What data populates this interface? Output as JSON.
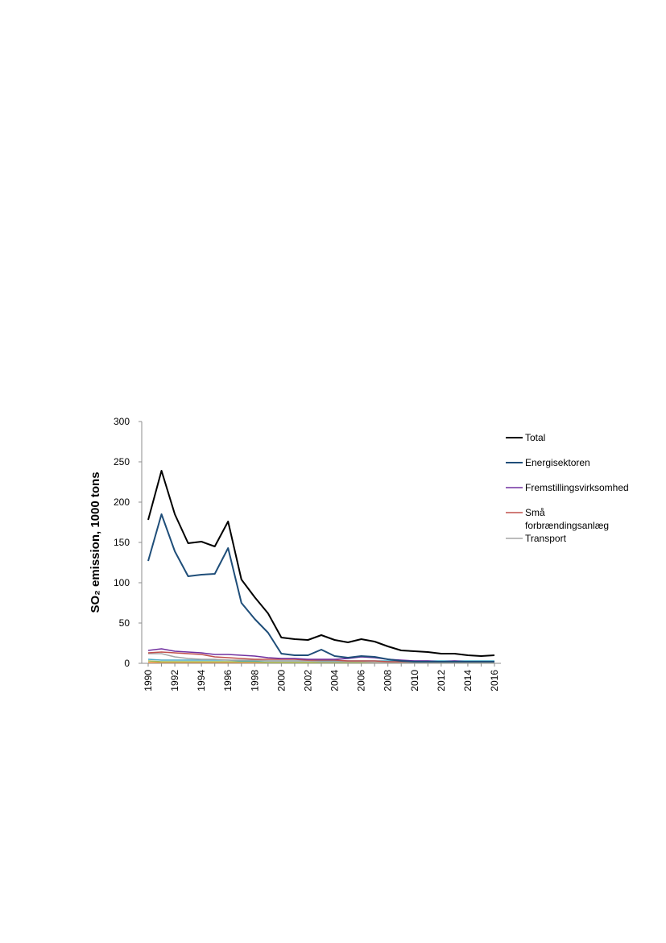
{
  "chart_data": {
    "type": "line",
    "ylabel": "SO₂ emission, 1000 tons",
    "ylim": [
      0,
      300
    ],
    "yticks": [
      0,
      50,
      100,
      150,
      200,
      250,
      300
    ],
    "x": [
      1990,
      1991,
      1992,
      1993,
      1994,
      1995,
      1996,
      1997,
      1998,
      1999,
      2000,
      2001,
      2002,
      2003,
      2004,
      2005,
      2006,
      2007,
      2008,
      2009,
      2010,
      2011,
      2012,
      2013,
      2014,
      2015,
      2016
    ],
    "xticks": [
      "1990",
      "1992",
      "1994",
      "1996",
      "1998",
      "2000",
      "2002",
      "2004",
      "2006",
      "2008",
      "2010",
      "2012",
      "2014",
      "2016"
    ],
    "legend_position": "right",
    "grid": false,
    "series": [
      {
        "name": "Total",
        "color": "#000000",
        "values": [
          178,
          239,
          185,
          149,
          151,
          145,
          176,
          104,
          82,
          62,
          32,
          30,
          29,
          35,
          29,
          26,
          30,
          27,
          21,
          16,
          15,
          14,
          12,
          12,
          10,
          9,
          10
        ]
      },
      {
        "name": "Energisektoren",
        "color": "#1f4e79",
        "values": [
          127,
          185,
          139,
          108,
          110,
          111,
          143,
          75,
          55,
          38,
          12,
          10,
          10,
          17,
          9,
          7,
          9,
          8,
          5,
          3,
          2,
          2,
          2,
          2,
          2,
          2,
          2
        ]
      },
      {
        "name": "Fremstillingsvirksomhed",
        "color": "#7030a0",
        "values": [
          16,
          18,
          15,
          14,
          13,
          11,
          11,
          10,
          9,
          7,
          6,
          6,
          5,
          5,
          5,
          6,
          8,
          7,
          5,
          4,
          3,
          3,
          2,
          3,
          2,
          2,
          2
        ]
      },
      {
        "name": "Små forbrændingsanlæg",
        "color": "#c0504d",
        "values": [
          13,
          14,
          13,
          12,
          11,
          8,
          7,
          6,
          5,
          5,
          5,
          5,
          4,
          4,
          4,
          3,
          3,
          3,
          2,
          2,
          2,
          2,
          2,
          2,
          2,
          2,
          2
        ]
      },
      {
        "name": "Transport",
        "color": "#a6a6a6",
        "values": [
          12,
          12,
          8,
          6,
          5,
          5,
          4,
          4,
          4,
          3,
          3,
          3,
          3,
          2,
          2,
          2,
          2,
          1,
          1,
          1,
          1,
          1,
          1,
          1,
          1,
          1,
          1
        ]
      },
      {
        "color": "#4bacc6",
        "values": [
          5,
          4,
          4,
          4,
          4,
          4,
          4,
          3,
          3,
          3,
          3,
          3,
          3,
          3,
          3,
          3,
          3,
          3,
          3,
          3,
          3,
          3,
          3,
          3,
          3,
          3,
          3
        ]
      },
      {
        "color": "#9bbb59",
        "values": [
          3,
          2,
          2,
          2,
          2,
          2,
          2,
          2,
          2,
          1,
          1,
          1,
          1,
          1,
          1,
          1,
          1,
          1,
          1,
          1,
          1,
          1,
          1,
          1,
          1,
          1,
          1
        ]
      },
      {
        "color": "#f79646",
        "values": [
          1,
          1,
          1,
          1,
          1,
          1,
          1,
          1,
          1,
          1,
          1,
          1,
          1,
          1,
          1,
          1,
          1,
          1,
          1,
          1,
          1,
          1,
          1,
          1,
          1,
          1,
          1
        ]
      }
    ],
    "legend": [
      {
        "label": "Total",
        "color": "#000000"
      },
      {
        "label": "Energisektoren",
        "color": "#1f4e79"
      },
      {
        "label": "Fremstillingsvirksomhed",
        "color": "#7030a0"
      },
      {
        "label": "Små",
        "label2": "forbrændingsanlæg",
        "color": "#c0504d"
      },
      {
        "label": "Transport",
        "color": "#a6a6a6"
      }
    ]
  }
}
